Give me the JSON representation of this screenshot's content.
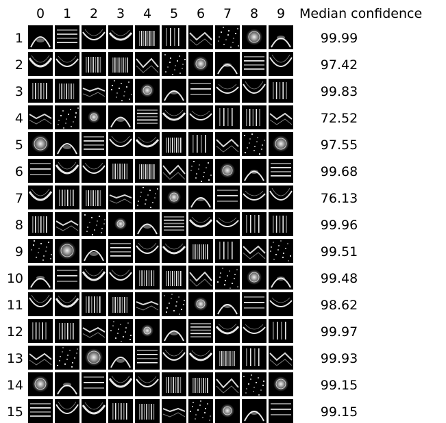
{
  "column_header_title": "",
  "columns": [
    "0",
    "1",
    "2",
    "3",
    "4",
    "5",
    "6",
    "7",
    "8",
    "9"
  ],
  "confidence_header": "Median confidence",
  "rows": [
    {
      "label": "1",
      "confidence": "99.99"
    },
    {
      "label": "2",
      "confidence": "97.42"
    },
    {
      "label": "3",
      "confidence": "99.83"
    },
    {
      "label": "4",
      "confidence": "72.52"
    },
    {
      "label": "5",
      "confidence": "97.55"
    },
    {
      "label": "6",
      "confidence": "99.68"
    },
    {
      "label": "7",
      "confidence": "76.13"
    },
    {
      "label": "8",
      "confidence": "99.96"
    },
    {
      "label": "9",
      "confidence": "99.51"
    },
    {
      "label": "10",
      "confidence": "99.48"
    },
    {
      "label": "11",
      "confidence": "98.62"
    },
    {
      "label": "12",
      "confidence": "99.97"
    },
    {
      "label": "13",
      "confidence": "99.93"
    },
    {
      "label": "14",
      "confidence": "99.15"
    },
    {
      "label": "15",
      "confidence": "99.15"
    }
  ],
  "colors": {
    "tile_background": "#000000",
    "pattern": "#ffffff",
    "page_background": "#ffffff"
  }
}
